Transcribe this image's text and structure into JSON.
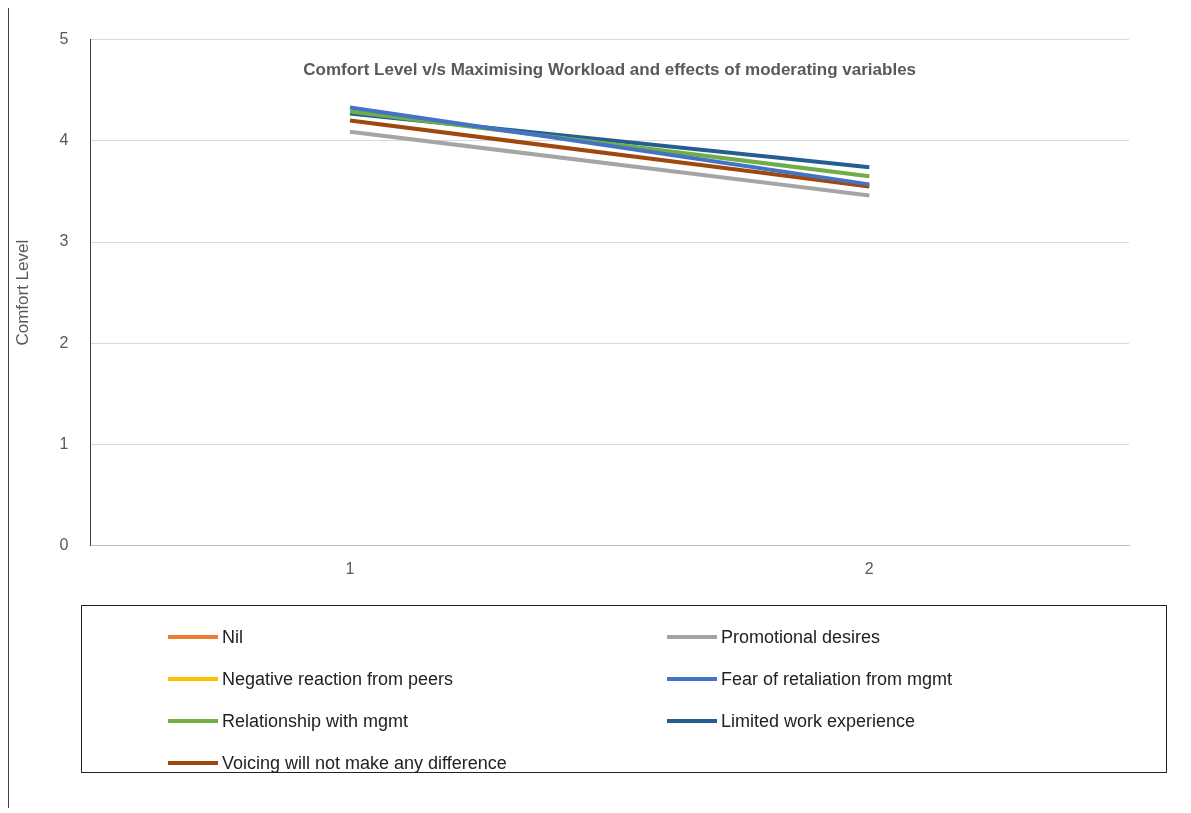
{
  "chart_data": {
    "type": "line",
    "title": "Comfort Level v/s Maximising Workload and effects of moderating variables",
    "ylabel": "Comfort Level",
    "categories": [
      "1",
      "2"
    ],
    "ylim": [
      0,
      5
    ],
    "yticks": [
      0,
      1,
      2,
      3,
      4,
      5
    ],
    "grid": "y",
    "legend": "bottom",
    "marker": "none",
    "series": [
      {
        "name": "Nil",
        "color": "#ed7d31",
        "values": [
          null,
          null
        ]
      },
      {
        "name": "Promotional desires",
        "color": "#a5a5a5",
        "values": [
          4.09,
          3.46
        ]
      },
      {
        "name": "Negative reaction from peers",
        "color": "#ffc000",
        "values": [
          null,
          null
        ]
      },
      {
        "name": "Fear of retaliation from mgmt",
        "color": "#4472c4",
        "values": [
          4.33,
          3.57
        ]
      },
      {
        "name": "Relationship with mgmt",
        "color": "#70ad47",
        "values": [
          4.29,
          3.65
        ]
      },
      {
        "name": "Limited work experience",
        "color": "#255e91",
        "values": [
          4.27,
          3.74
        ]
      },
      {
        "name": "Voicing will not make any difference",
        "color": "#9e480e",
        "values": [
          4.2,
          3.55
        ]
      }
    ]
  }
}
